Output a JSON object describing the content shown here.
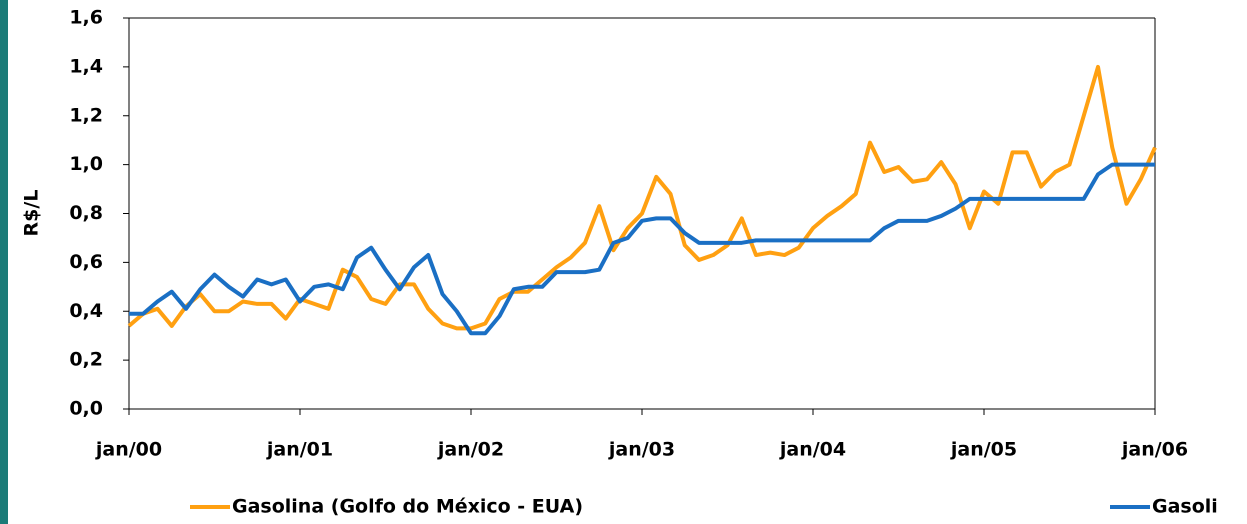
{
  "chart_data": {
    "type": "line",
    "y_label": "R$/L",
    "categories": [
      "jan/00",
      null,
      null,
      null,
      null,
      null,
      null,
      null,
      null,
      null,
      null,
      null,
      "jan/01",
      null,
      null,
      null,
      null,
      null,
      null,
      null,
      null,
      null,
      null,
      null,
      "jan/02",
      null,
      null,
      null,
      null,
      null,
      null,
      null,
      null,
      null,
      null,
      null,
      "jan/03",
      null,
      null,
      null,
      null,
      null,
      null,
      null,
      null,
      null,
      null,
      null,
      "jan/04",
      null,
      null,
      null,
      null,
      null,
      null,
      null,
      null,
      null,
      null,
      null,
      "jan/05",
      null,
      null,
      null,
      null,
      null,
      null,
      null,
      null,
      null,
      null,
      null,
      "jan/06"
    ],
    "series": [
      {
        "name": "Gasolina (Golfo do México - EUA)",
        "color": "#ffa011",
        "values": [
          0.34,
          0.39,
          0.41,
          0.34,
          0.42,
          0.47,
          0.4,
          0.4,
          0.44,
          0.43,
          0.43,
          0.37,
          0.45,
          0.43,
          0.41,
          0.57,
          0.54,
          0.45,
          0.43,
          0.51,
          0.51,
          0.41,
          0.35,
          0.33,
          0.33,
          0.35,
          0.45,
          0.48,
          0.48,
          0.53,
          0.58,
          0.62,
          0.68,
          0.83,
          0.65,
          0.74,
          0.8,
          0.95,
          0.88,
          0.67,
          0.61,
          0.63,
          0.67,
          0.78,
          0.63,
          0.64,
          0.63,
          0.66,
          0.74,
          0.79,
          0.83,
          0.88,
          1.09,
          0.97,
          0.99,
          0.93,
          0.94,
          1.01,
          0.92,
          0.74,
          0.89,
          0.84,
          1.05,
          1.05,
          0.91,
          0.97,
          1.0,
          1.2,
          1.4,
          1.07,
          0.84,
          0.94,
          1.07
        ]
      },
      {
        "name": "Gasoli",
        "color": "#1a6fc4",
        "values": [
          0.39,
          0.39,
          0.44,
          0.48,
          0.41,
          0.49,
          0.55,
          0.5,
          0.46,
          0.53,
          0.51,
          0.53,
          0.44,
          0.5,
          0.51,
          0.49,
          0.62,
          0.66,
          0.57,
          0.49,
          0.58,
          0.63,
          0.47,
          0.4,
          0.31,
          0.31,
          0.38,
          0.49,
          0.5,
          0.5,
          0.56,
          0.56,
          0.56,
          0.57,
          0.68,
          0.7,
          0.77,
          0.78,
          0.78,
          0.72,
          0.68,
          0.68,
          0.68,
          0.68,
          0.69,
          0.69,
          0.69,
          0.69,
          0.69,
          0.69,
          0.69,
          0.69,
          0.69,
          0.74,
          0.77,
          0.77,
          0.77,
          0.79,
          0.82,
          0.86,
          0.86,
          0.86,
          0.86,
          0.86,
          0.86,
          0.86,
          0.86,
          0.86,
          0.96,
          1.0,
          1.0,
          1.0,
          1.0
        ]
      }
    ],
    "ylim": [
      0,
      1.6
    ],
    "yticks": [
      {
        "value": 0,
        "label": "0,0"
      },
      {
        "value": 0.2,
        "label": "0,2"
      },
      {
        "value": 0.4,
        "label": "0,4"
      },
      {
        "value": 0.6,
        "label": "0,6"
      },
      {
        "value": 0.8,
        "label": "0,8"
      },
      {
        "value": 1.0,
        "label": "1,0"
      },
      {
        "value": 1.2,
        "label": "1,2"
      },
      {
        "value": 1.4,
        "label": "1,4"
      },
      {
        "value": 1.6,
        "label": "1,6"
      }
    ],
    "grid": false
  }
}
